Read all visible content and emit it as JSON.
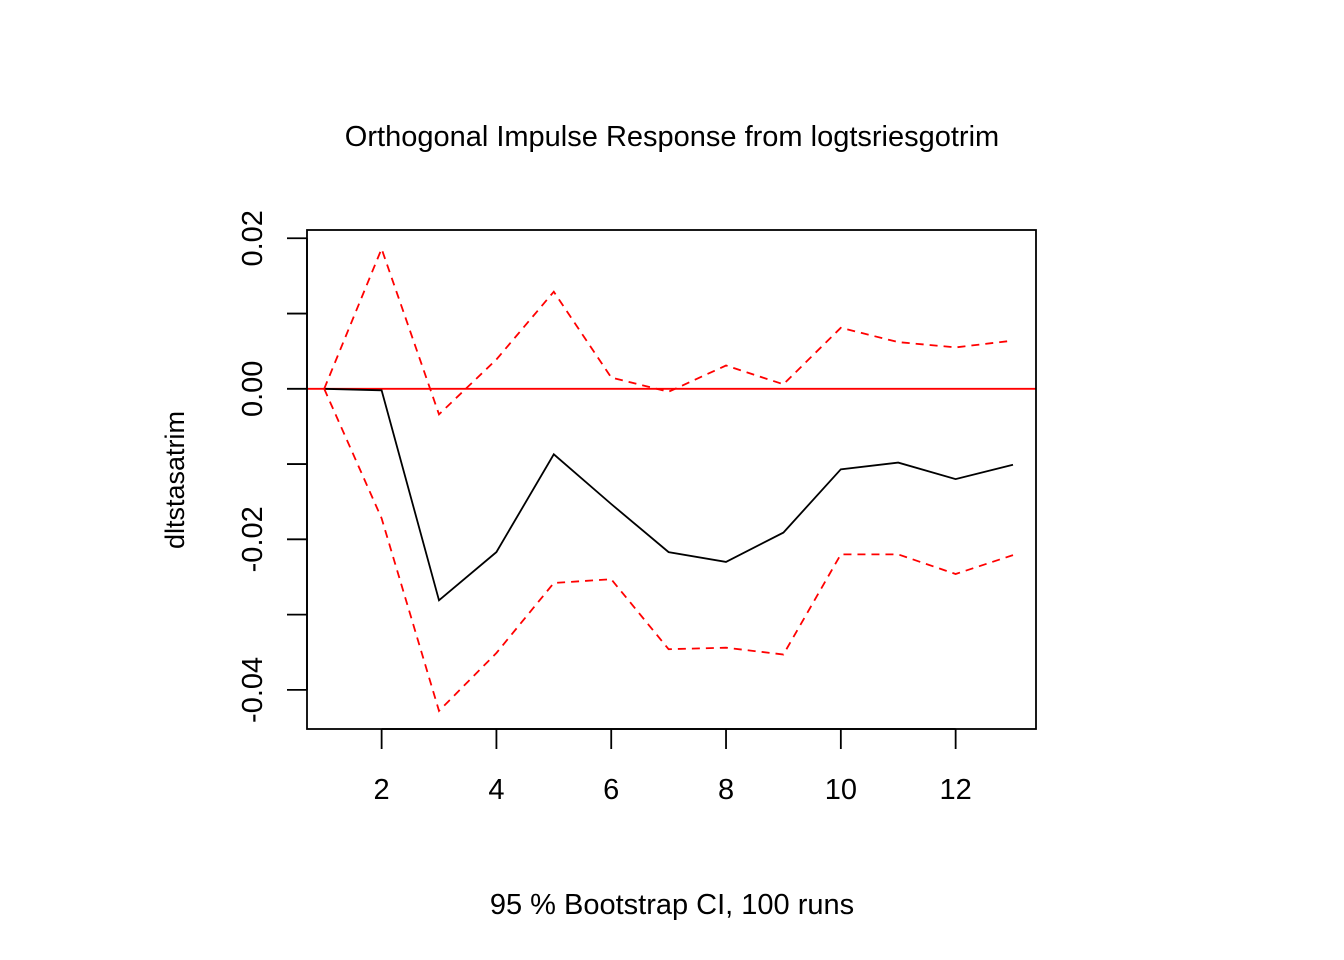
{
  "chart_data": {
    "type": "line",
    "title": "Orthogonal Impulse Response from logtsriesgotrim",
    "ylabel": "dltstasatrim",
    "xlabel": "95 % Bootstrap CI,  100 runs",
    "xlim": [
      0.7,
      13.4
    ],
    "ylim": [
      -0.0452,
      0.0211
    ],
    "x_ticks": [
      2,
      4,
      6,
      8,
      10,
      12
    ],
    "x_tick_labels": [
      "2",
      "4",
      "6",
      "8",
      "10",
      "12"
    ],
    "y_ticks": [
      0.02,
      0.01,
      0.0,
      -0.01,
      -0.02,
      -0.03,
      -0.04
    ],
    "y_tick_labels": [
      "0.02",
      "",
      "0.00",
      "",
      "-0.02",
      "",
      "-0.04"
    ],
    "x": [
      1,
      2,
      3,
      4,
      5,
      6,
      7,
      8,
      9,
      10,
      11,
      12,
      13
    ],
    "series": [
      {
        "role": "response",
        "color": "#000000",
        "dash": "solid",
        "values": [
          0.0,
          -0.0002,
          -0.0281,
          -0.0217,
          -0.0087,
          -0.0153,
          -0.0217,
          -0.023,
          -0.0191,
          -0.0107,
          -0.0098,
          -0.012,
          -0.0101
        ]
      },
      {
        "role": "upper-ci",
        "color": "#ff0000",
        "dash": "dashed",
        "values": [
          0.0,
          0.0186,
          -0.0034,
          0.0039,
          0.0129,
          0.0015,
          -0.0004,
          0.0031,
          0.0006,
          0.0081,
          0.0062,
          0.0055,
          0.0064
        ]
      },
      {
        "role": "lower-ci",
        "color": "#ff0000",
        "dash": "dashed",
        "values": [
          0.0,
          -0.0172,
          -0.0428,
          -0.0351,
          -0.0258,
          -0.0253,
          -0.0346,
          -0.0344,
          -0.0353,
          -0.022,
          -0.022,
          -0.0246,
          -0.0221
        ]
      }
    ],
    "zero_line": {
      "y": 0.0,
      "color": "#ff0000"
    },
    "grid": false,
    "legend": "none"
  }
}
